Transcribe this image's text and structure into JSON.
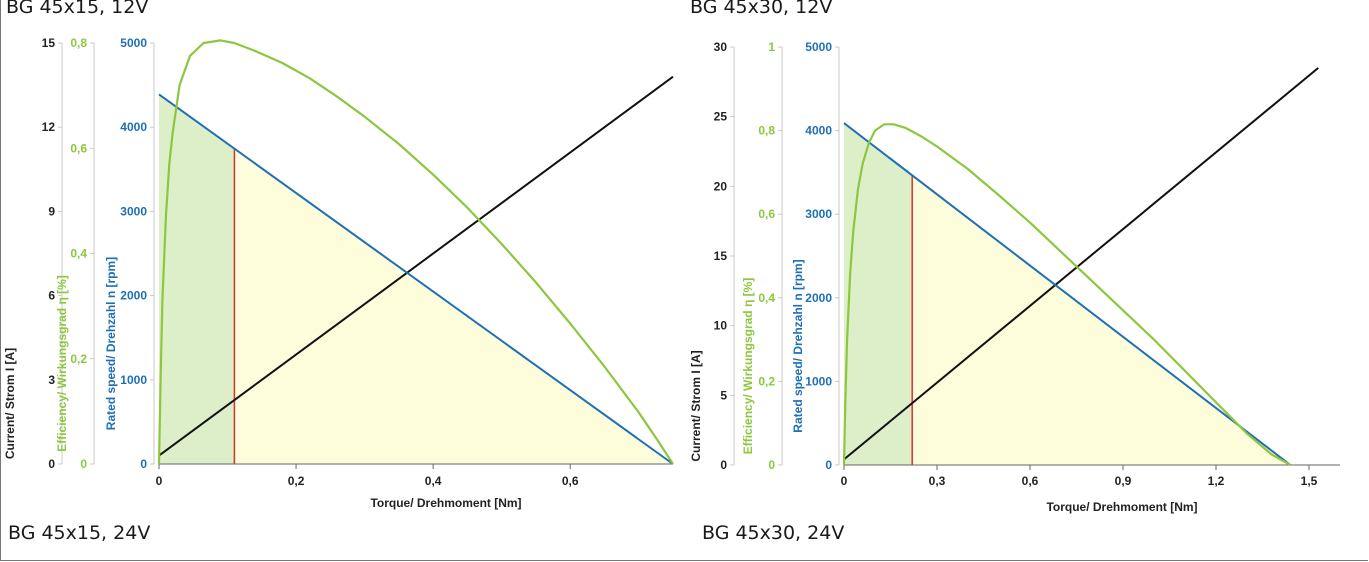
{
  "page": {
    "captions": [
      "BG 45x15, 12V",
      "BG 45x30, 12V",
      "BG 45x15, 24V",
      "BG 45x30, 24V"
    ]
  },
  "colors": {
    "current": "#111111",
    "efficiency": "#8dc63f",
    "speed": "#1f6fb5",
    "marker": "#e0302a",
    "green_fill": "#dcefc9",
    "yellow_fill": "#fdfddc",
    "axis": "#c8c8c8",
    "baseline": "#666666"
  },
  "chart_data": [
    {
      "type": "line",
      "title": "BG 45x15, 12V",
      "xlabel": "Torque/ Drehmoment [Nm]",
      "xlim": [
        0,
        0.75
      ],
      "xticks": [
        0,
        0.2,
        0.4,
        0.6
      ],
      "xtick_labels": [
        "0",
        "0,2",
        "0,4",
        "0,6"
      ],
      "axes": [
        {
          "key": "current",
          "label": "Current/ Strom I [A]",
          "range": [
            0,
            15
          ],
          "ticks": [
            0,
            3,
            6,
            9,
            12,
            15
          ],
          "tick_labels": [
            "0",
            "3",
            "6",
            "9",
            "12",
            "15"
          ]
        },
        {
          "key": "efficiency",
          "label": "Efficiency/ Wirkungsgrad η [%]",
          "range": [
            0,
            0.8
          ],
          "ticks": [
            0,
            0.2,
            0.4,
            0.6,
            0.8
          ],
          "tick_labels": [
            "0",
            "0,2",
            "0,4",
            "0,6",
            "0,8"
          ]
        },
        {
          "key": "speed",
          "label": "Rated speed/ Drehzahl n [rpm]",
          "range": [
            0,
            5000
          ],
          "ticks": [
            0,
            1000,
            2000,
            3000,
            4000,
            5000
          ],
          "tick_labels": [
            "0",
            "1000",
            "2000",
            "3000",
            "4000",
            "5000"
          ]
        }
      ],
      "series": [
        {
          "key": "speed",
          "x": [
            0,
            0.75
          ],
          "y": [
            4390,
            0
          ]
        },
        {
          "key": "current",
          "x": [
            0,
            0.75
          ],
          "y": [
            0.3,
            13.8
          ]
        },
        {
          "key": "efficiency",
          "x": [
            0,
            0.0025,
            0.005,
            0.01,
            0.015,
            0.02,
            0.03,
            0.045,
            0.065,
            0.09,
            0.11,
            0.14,
            0.18,
            0.22,
            0.26,
            0.3,
            0.35,
            0.4,
            0.45,
            0.5,
            0.55,
            0.6,
            0.65,
            0.7,
            0.73,
            0.75
          ],
          "y": [
            0,
            0.17,
            0.31,
            0.47,
            0.57,
            0.63,
            0.72,
            0.775,
            0.8,
            0.805,
            0.8,
            0.785,
            0.762,
            0.733,
            0.698,
            0.66,
            0.608,
            0.55,
            0.487,
            0.418,
            0.345,
            0.267,
            0.185,
            0.098,
            0.04,
            0
          ]
        }
      ],
      "rated_torque": 0.11,
      "shaded_regions": [
        "continuous (0 to rated torque)",
        "short-time (rated torque to stall)"
      ]
    },
    {
      "type": "line",
      "title": "BG 45x30, 12V",
      "xlabel": "Torque/ Drehmoment [Nm]",
      "xlim": [
        0,
        1.6
      ],
      "xticks": [
        0,
        0.3,
        0.6,
        0.9,
        1.2,
        1.5
      ],
      "xtick_labels": [
        "0",
        "0,3",
        "0,6",
        "0,9",
        "1,2",
        "1,5"
      ],
      "axes": [
        {
          "key": "current",
          "label": "Current/ Strom I [A]",
          "range": [
            0,
            30
          ],
          "ticks": [
            0,
            5,
            10,
            15,
            20,
            25,
            30
          ],
          "tick_labels": [
            "0",
            "5",
            "10",
            "15",
            "20",
            "25",
            "30"
          ]
        },
        {
          "key": "efficiency",
          "label": "Efficiency/ Wirkungsgrad η [%]",
          "range": [
            0,
            1
          ],
          "ticks": [
            0,
            0.2,
            0.4,
            0.6,
            0.8,
            1
          ],
          "tick_labels": [
            "0",
            "0,2",
            "0,4",
            "0,6",
            "0,8",
            "1"
          ]
        },
        {
          "key": "speed",
          "label": "Rated speed/ Drehzahl n [rpm]",
          "range": [
            0,
            5000
          ],
          "ticks": [
            0,
            1000,
            2000,
            3000,
            4000,
            5000
          ],
          "tick_labels": [
            "0",
            "1000",
            "2000",
            "3000",
            "4000",
            "5000"
          ]
        }
      ],
      "series": [
        {
          "key": "speed",
          "x": [
            0,
            1.44
          ],
          "y": [
            4090,
            0
          ]
        },
        {
          "key": "current",
          "x": [
            0,
            1.53
          ],
          "y": [
            0.4,
            28.5
          ]
        },
        {
          "key": "efficiency",
          "x": [
            0,
            0.004,
            0.01,
            0.02,
            0.03,
            0.045,
            0.06,
            0.08,
            0.1,
            0.13,
            0.16,
            0.2,
            0.25,
            0.3,
            0.4,
            0.5,
            0.6,
            0.7,
            0.8,
            0.9,
            1.0,
            1.1,
            1.2,
            1.3,
            1.38,
            1.44
          ],
          "y": [
            0,
            0.14,
            0.3,
            0.46,
            0.56,
            0.66,
            0.72,
            0.77,
            0.8,
            0.815,
            0.815,
            0.806,
            0.786,
            0.762,
            0.708,
            0.645,
            0.58,
            0.51,
            0.44,
            0.37,
            0.3,
            0.225,
            0.15,
            0.075,
            0.025,
            0
          ]
        }
      ],
      "rated_torque": 0.22,
      "shaded_regions": [
        "continuous (0 to rated torque)",
        "short-time (rated torque to stall)"
      ]
    }
  ]
}
